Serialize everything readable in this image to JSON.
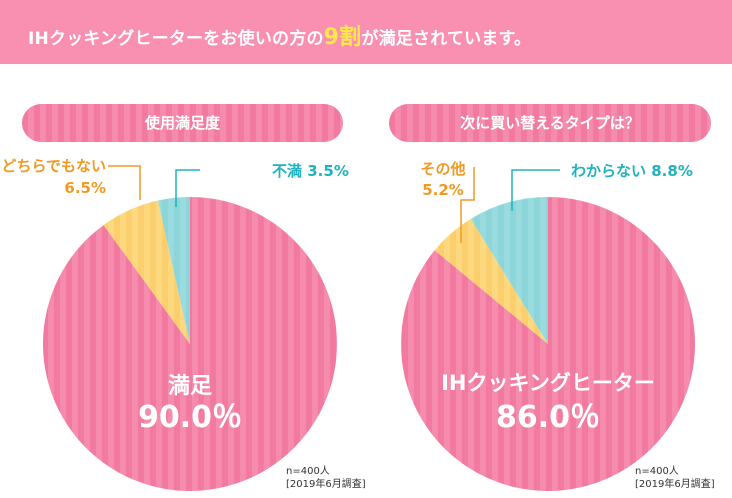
{
  "banner": {
    "text_before": "IHクッキングヒーターをお使いの方の",
    "highlight": "9割",
    "text_after": "が満足されています。"
  },
  "charts": [
    {
      "title": "使用満足度",
      "note_n": "n=400人",
      "note_date": "[2019年6月調査]"
    },
    {
      "title": "次に買い替えるタイプは？",
      "note_n": "n=400人",
      "note_date": "[2019年6月調査]"
    }
  ],
  "colors": {
    "banner": "#f990b2",
    "pink": "#f27aa0",
    "yellow": "#fbcf6e",
    "teal": "#8cd5d9",
    "orange_label": "#f09a25",
    "teal_label": "#1fb3bf"
  },
  "chart_data": [
    {
      "type": "pie",
      "title": "使用満足度",
      "slices": [
        {
          "label": "満足",
          "value": 90.0,
          "display": "90.0％",
          "color": "#f27aa0"
        },
        {
          "label": "どちらでもない",
          "value": 6.5,
          "display": "6.5%",
          "color": "#fbcf6e"
        },
        {
          "label": "不満",
          "value": 3.5,
          "display": "3.5%",
          "color": "#8cd5d9"
        }
      ]
    },
    {
      "type": "pie",
      "title": "次に買い替えるタイプは？",
      "slices": [
        {
          "label": "IHクッキングヒーター",
          "value": 86.0,
          "display": "86.0％",
          "color": "#f27aa0"
        },
        {
          "label": "その他",
          "value": 5.2,
          "display": "5.2%",
          "color": "#fbcf6e"
        },
        {
          "label": "わからない",
          "value": 8.8,
          "display": "8.8%",
          "color": "#8cd5d9"
        }
      ]
    }
  ]
}
